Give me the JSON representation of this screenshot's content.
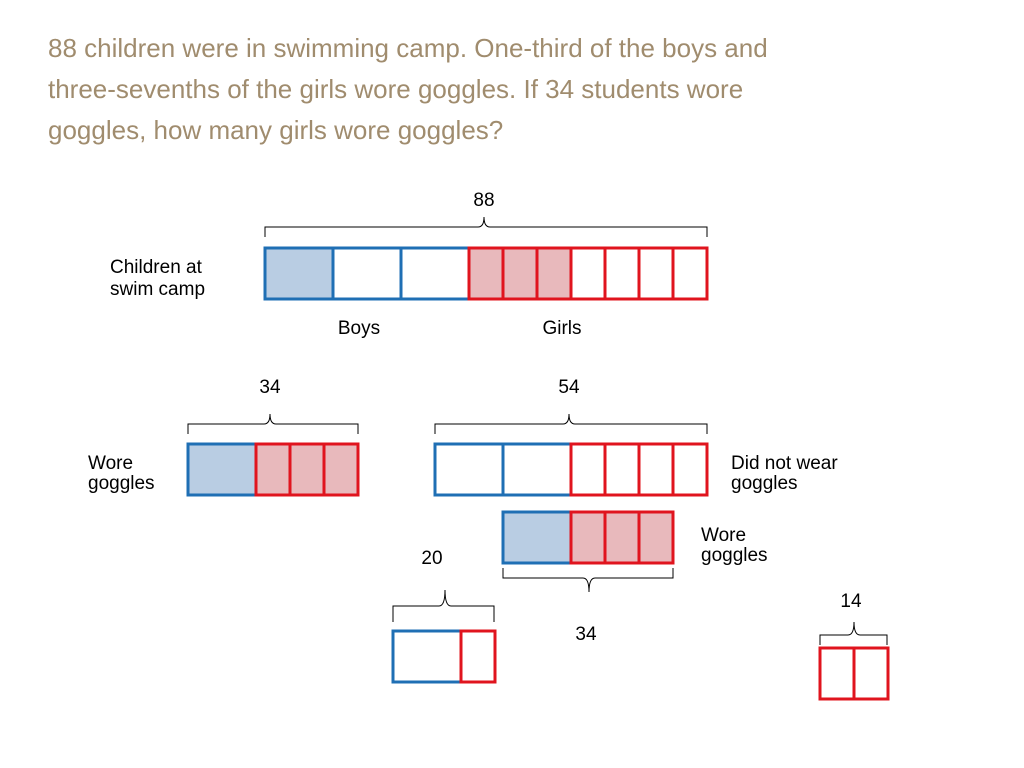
{
  "problem": {
    "lines": [
      "88 children were in swimming camp.  One-third of the boys and",
      "three-sevenths of the girls wore goggles.  If 34 students wore",
      "goggles, how many girls wore goggles?"
    ]
  },
  "colors": {
    "boy_stroke": "#1f6fb4",
    "boy_fill": "#b9cde3",
    "girl_stroke": "#e0141e",
    "girl_fill": "#e8b9bc",
    "problem_text": "#a08c6e"
  },
  "diagram": {
    "total": {
      "label": "88"
    },
    "children_label": [
      "Children at",
      "swim camp"
    ],
    "boys_label": "Boys",
    "girls_label": "Girls",
    "wore": {
      "total": "34",
      "label": [
        "Wore",
        "goggles"
      ]
    },
    "not_wore": {
      "total": "54",
      "label": [
        "Did not wear",
        "goggles"
      ]
    },
    "wore2": {
      "total": "34",
      "label": [
        "Wore",
        "goggles"
      ]
    },
    "remainder_boys": {
      "total": "20"
    },
    "remainder_girls": {
      "total": "14"
    }
  }
}
